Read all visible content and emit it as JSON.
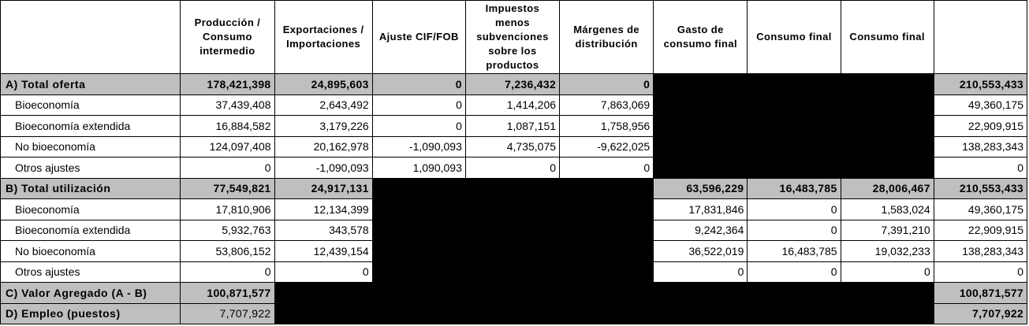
{
  "headers": [
    "",
    "Producción / Consumo intermedio",
    "Exportaciones / Importaciones",
    "Ajuste CIF/FOB",
    "Impuestos menos subvenciones sobre los productos",
    "Márgenes de distribución",
    "Gasto de consumo final",
    "Consumo final",
    "Consumo final",
    ""
  ],
  "rows": [
    {
      "label": "A) Total oferta",
      "type": "total",
      "cells": [
        "178,421,398",
        "24,895,603",
        "0",
        "7,236,432",
        "0",
        null,
        null,
        null,
        "210,553,433"
      ]
    },
    {
      "label": "Bioeconomía",
      "type": "sub",
      "cells": [
        "37,439,408",
        "2,643,492",
        "0",
        "1,414,206",
        "7,863,069",
        null,
        null,
        null,
        "49,360,175"
      ]
    },
    {
      "label": "Bioeconomía extendida",
      "type": "sub",
      "cells": [
        "16,884,582",
        "3,179,226",
        "0",
        "1,087,151",
        "1,758,956",
        null,
        null,
        null,
        "22,909,915"
      ]
    },
    {
      "label": "No bioeconomía",
      "type": "sub",
      "cells": [
        "124,097,408",
        "20,162,978",
        "-1,090,093",
        "4,735,075",
        "-9,622,025",
        null,
        null,
        null,
        "138,283,343"
      ]
    },
    {
      "label": "Otros ajustes",
      "type": "sub",
      "cells": [
        "0",
        "-1,090,093",
        "1,090,093",
        "0",
        "0",
        null,
        null,
        null,
        "0"
      ]
    },
    {
      "label": "B) Total utilización",
      "type": "total",
      "cells": [
        "77,549,821",
        "24,917,131",
        null,
        null,
        null,
        "63,596,229",
        "16,483,785",
        "28,006,467",
        "210,553,433"
      ]
    },
    {
      "label": "Bioeconomía",
      "type": "sub",
      "cells": [
        "17,810,906",
        "12,134,399",
        null,
        null,
        null,
        "17,831,846",
        "0",
        "1,583,024",
        "49,360,175"
      ]
    },
    {
      "label": "Bioeconomía extendida",
      "type": "sub",
      "cells": [
        "5,932,763",
        "343,578",
        null,
        null,
        null,
        "9,242,364",
        "0",
        "7,391,210",
        "22,909,915"
      ]
    },
    {
      "label": "No bioeconomía",
      "type": "sub",
      "cells": [
        "53,806,152",
        "12,439,154",
        null,
        null,
        null,
        "36,522,019",
        "16,483,785",
        "19,032,233",
        "138,283,343"
      ]
    },
    {
      "label": "Otros ajustes",
      "type": "sub",
      "cells": [
        "0",
        "0",
        null,
        null,
        null,
        "0",
        "0",
        "0",
        "0"
      ]
    },
    {
      "label": "C) Valor Agregado (A - B)",
      "type": "total",
      "cells": [
        "100,871,577",
        null,
        null,
        null,
        null,
        null,
        null,
        null,
        "100,871,577"
      ]
    },
    {
      "label": "D) Empleo (puestos)",
      "type": "total",
      "plainFirst": true,
      "cells": [
        "7,707,922",
        null,
        null,
        null,
        null,
        null,
        null,
        null,
        "7,707,922"
      ]
    }
  ]
}
